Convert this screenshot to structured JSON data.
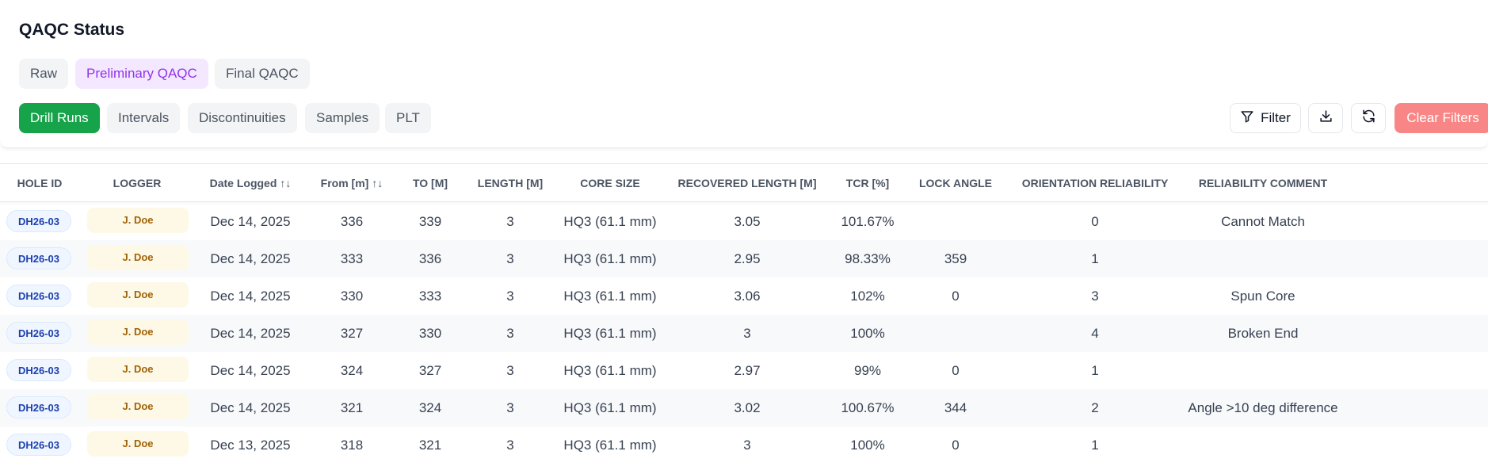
{
  "page_title": "QAQC Status",
  "stages": [
    {
      "label": "Raw"
    },
    {
      "label": "Preliminary QAQC"
    },
    {
      "label": "Final QAQC"
    }
  ],
  "tabs": [
    {
      "label": "Drill Runs"
    },
    {
      "label": "Intervals"
    },
    {
      "label": "Discontinuities"
    },
    {
      "label": "Samples"
    },
    {
      "label": "PLT"
    }
  ],
  "toolbar": {
    "filter_label": "Filter",
    "clear_filters_label": "Clear Filters",
    "download_icon": "download-icon",
    "refresh_icon": "refresh-icon",
    "filter_icon": "filter-funnel-icon"
  },
  "table": {
    "columns": [
      "HOLE ID",
      "LOGGER",
      "Date Logged",
      "From [m]",
      "TO [M]",
      "LENGTH [M]",
      "CORE SIZE",
      "RECOVERED LENGTH [M]",
      "TCR [%]",
      "LOCK ANGLE",
      "ORIENTATION RELIABILITY",
      "RELIABILITY COMMENT"
    ],
    "sort_glyph": "↑↓",
    "rows": [
      [
        "DH26-03",
        "J. Doe",
        "Dec 14, 2025",
        "336",
        "339",
        "3",
        "HQ3 (61.1 mm)",
        "3.05",
        "101.67%",
        "",
        "0",
        "Cannot Match"
      ],
      [
        "DH26-03",
        "J. Doe",
        "Dec 14, 2025",
        "333",
        "336",
        "3",
        "HQ3 (61.1 mm)",
        "2.95",
        "98.33%",
        "359",
        "1",
        ""
      ],
      [
        "DH26-03",
        "J. Doe",
        "Dec 14, 2025",
        "330",
        "333",
        "3",
        "HQ3 (61.1 mm)",
        "3.06",
        "102%",
        "0",
        "3",
        "Spun Core"
      ],
      [
        "DH26-03",
        "J. Doe",
        "Dec 14, 2025",
        "327",
        "330",
        "3",
        "HQ3 (61.1 mm)",
        "3",
        "100%",
        "",
        "4",
        "Broken End"
      ],
      [
        "DH26-03",
        "J. Doe",
        "Dec 14, 2025",
        "324",
        "327",
        "3",
        "HQ3 (61.1 mm)",
        "2.97",
        "99%",
        "0",
        "1",
        ""
      ],
      [
        "DH26-03",
        "J. Doe",
        "Dec 14, 2025",
        "321",
        "324",
        "3",
        "HQ3 (61.1 mm)",
        "3.02",
        "100.67%",
        "344",
        "2",
        "Angle >10 deg difference"
      ],
      [
        "DH26-03",
        "J. Doe",
        "Dec 13, 2025",
        "318",
        "321",
        "3",
        "HQ3 (61.1 mm)",
        "3",
        "100%",
        "0",
        "1",
        ""
      ]
    ]
  },
  "colors": {
    "accent_green": "#16a34a",
    "stage_active_purple": "#9333ea",
    "clear_filters_red": "#f87171"
  }
}
